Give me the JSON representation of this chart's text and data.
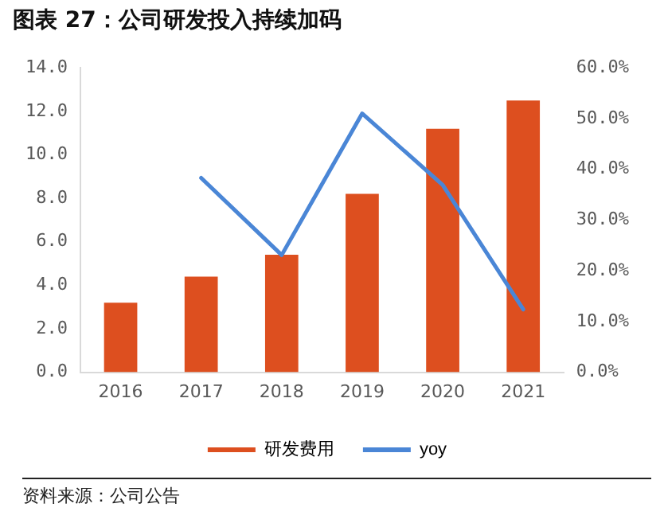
{
  "chart_data": {
    "type": "bar",
    "title": "图表 27：公司研发投入持续加码",
    "categories": [
      "2016",
      "2017",
      "2018",
      "2019",
      "2020",
      "2021"
    ],
    "series": [
      {
        "name": "研发费用",
        "color": "#dd4f1f",
        "values": [
          3.2,
          4.4,
          5.4,
          8.2,
          11.2,
          12.5
        ]
      },
      {
        "name": "yoy",
        "type": "line",
        "axis": "y2",
        "color": "#4a86d6",
        "values": [
          null,
          38.3,
          23.1,
          51.0,
          36.9,
          12.4
        ]
      }
    ],
    "ylim": [
      0,
      14
    ],
    "yticks": [
      {
        "value": 0,
        "label": "0.0"
      },
      {
        "value": 2,
        "label": "2.0"
      },
      {
        "value": 4,
        "label": "4.0"
      },
      {
        "value": 6,
        "label": "6.0"
      },
      {
        "value": 8,
        "label": "8.0"
      },
      {
        "value": 10,
        "label": "10.0"
      },
      {
        "value": 12,
        "label": "12.0"
      },
      {
        "value": 14,
        "label": "14.0"
      }
    ],
    "y2lim": [
      0,
      60
    ],
    "y2ticks": [
      {
        "value": 0,
        "label": "0.0%"
      },
      {
        "value": 10,
        "label": "10.0%"
      },
      {
        "value": 20,
        "label": "20.0%"
      },
      {
        "value": 30,
        "label": "30.0%"
      },
      {
        "value": 40,
        "label": "40.0%"
      },
      {
        "value": 50,
        "label": "50.0%"
      },
      {
        "value": 60,
        "label": "60.0%"
      }
    ],
    "grid": false,
    "legend": "bottom",
    "marker": "none",
    "annotations": [
      "资料来源：公司公告"
    ]
  }
}
